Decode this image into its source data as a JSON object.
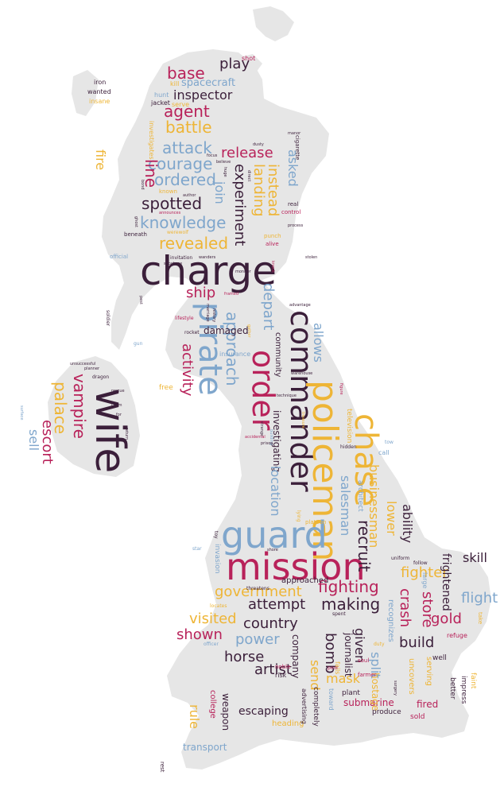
{
  "palette": {
    "land": "#e6e6e6",
    "dark": "#3b1f3a",
    "crimson": "#b8225a",
    "blue": "#7fa6cc",
    "gold": "#eeb536"
  },
  "words": [
    {
      "text": "charge",
      "color": "dark",
      "size": 50
    },
    {
      "text": "wife",
      "color": "dark",
      "size": 52
    },
    {
      "text": "commander",
      "color": "dark",
      "size": 38
    },
    {
      "text": "policeman",
      "color": "gold",
      "size": 44
    },
    {
      "text": "mission",
      "color": "crimson",
      "size": 46
    },
    {
      "text": "guard",
      "color": "blue",
      "size": 46
    },
    {
      "text": "chase",
      "color": "gold",
      "size": 40
    },
    {
      "text": "pirate",
      "color": "blue",
      "size": 40
    },
    {
      "text": "order",
      "color": "crimson",
      "size": 38
    },
    {
      "text": "battle",
      "color": "gold",
      "size": 20
    },
    {
      "text": "agent",
      "color": "crimson",
      "size": 20
    },
    {
      "text": "base",
      "color": "crimson",
      "size": 20
    },
    {
      "text": "play",
      "color": "dark",
      "size": 18
    },
    {
      "text": "inspector",
      "color": "dark",
      "size": 16
    },
    {
      "text": "spacecraft",
      "color": "blue",
      "size": 13
    },
    {
      "text": "attack",
      "color": "blue",
      "size": 20
    },
    {
      "text": "courage",
      "color": "blue",
      "size": 20
    },
    {
      "text": "ordered",
      "color": "blue",
      "size": 20
    },
    {
      "text": "spotted",
      "color": "dark",
      "size": 20
    },
    {
      "text": "knowledge",
      "color": "blue",
      "size": 20
    },
    {
      "text": "revealed",
      "color": "gold",
      "size": 20
    },
    {
      "text": "release",
      "color": "crimson",
      "size": 18
    },
    {
      "text": "experiment",
      "color": "dark",
      "size": 18
    },
    {
      "text": "landing",
      "color": "gold",
      "size": 18
    },
    {
      "text": "instead",
      "color": "gold",
      "size": 18
    },
    {
      "text": "join",
      "color": "blue",
      "size": 16
    },
    {
      "text": "asked",
      "color": "blue",
      "size": 16
    },
    {
      "text": "line",
      "color": "crimson",
      "size": 20
    },
    {
      "text": "fire",
      "color": "gold",
      "size": 16
    },
    {
      "text": "ship",
      "color": "crimson",
      "size": 18
    },
    {
      "text": "approach",
      "color": "blue",
      "size": 20
    },
    {
      "text": "activity",
      "color": "crimson",
      "size": 18
    },
    {
      "text": "depart",
      "color": "blue",
      "size": 18
    },
    {
      "text": "allows",
      "color": "blue",
      "size": 16
    },
    {
      "text": "investigating",
      "color": "dark",
      "size": 12
    },
    {
      "text": "location",
      "color": "blue",
      "size": 16
    },
    {
      "text": "salesman",
      "color": "blue",
      "size": 16
    },
    {
      "text": "businessman",
      "color": "gold",
      "size": 16
    },
    {
      "text": "recruit",
      "color": "dark",
      "size": 20
    },
    {
      "text": "lower",
      "color": "gold",
      "size": 16
    },
    {
      "text": "ability",
      "color": "dark",
      "size": 16
    },
    {
      "text": "fighter",
      "color": "gold",
      "size": 18
    },
    {
      "text": "fighting",
      "color": "crimson",
      "size": 20
    },
    {
      "text": "making",
      "color": "dark",
      "size": 20
    },
    {
      "text": "attempt",
      "color": "dark",
      "size": 18
    },
    {
      "text": "government",
      "color": "gold",
      "size": 18
    },
    {
      "text": "country",
      "color": "dark",
      "size": 18
    },
    {
      "text": "visited",
      "color": "gold",
      "size": 18
    },
    {
      "text": "shown",
      "color": "crimson",
      "size": 18
    },
    {
      "text": "power",
      "color": "blue",
      "size": 18
    },
    {
      "text": "horse",
      "color": "dark",
      "size": 18
    },
    {
      "text": "bomb",
      "color": "dark",
      "size": 18
    },
    {
      "text": "given",
      "color": "dark",
      "size": 16
    },
    {
      "text": "crash",
      "color": "crimson",
      "size": 18
    },
    {
      "text": "store",
      "color": "crimson",
      "size": 18
    },
    {
      "text": "gold",
      "color": "crimson",
      "size": 18
    },
    {
      "text": "flight",
      "color": "blue",
      "size": 18
    },
    {
      "text": "skill",
      "color": "dark",
      "size": 16
    },
    {
      "text": "build",
      "color": "dark",
      "size": 18
    },
    {
      "text": "frightened",
      "color": "dark",
      "size": 14
    },
    {
      "text": "split",
      "color": "blue",
      "size": 16
    },
    {
      "text": "send",
      "color": "gold",
      "size": 16
    },
    {
      "text": "artist",
      "color": "dark",
      "size": 18
    },
    {
      "text": "mask",
      "color": "gold",
      "size": 16
    },
    {
      "text": "escaping",
      "color": "dark",
      "size": 14
    },
    {
      "text": "rule",
      "color": "gold",
      "size": 16
    },
    {
      "text": "transport",
      "color": "blue",
      "size": 12
    },
    {
      "text": "submarine",
      "color": "crimson",
      "size": 12
    },
    {
      "text": "palace",
      "color": "gold",
      "size": 20
    },
    {
      "text": "vampire",
      "color": "crimson",
      "size": 20
    },
    {
      "text": "escort",
      "color": "crimson",
      "size": 18
    },
    {
      "text": "sell",
      "color": "blue",
      "size": 16
    },
    {
      "text": "company",
      "color": "dark",
      "size": 12
    },
    {
      "text": "journalist",
      "color": "dark",
      "size": 12
    },
    {
      "text": "hostage",
      "color": "gold",
      "size": 12
    },
    {
      "text": "recognizes",
      "color": "blue",
      "size": 10
    },
    {
      "text": "uncovers",
      "color": "gold",
      "size": 10
    },
    {
      "text": "serving",
      "color": "gold",
      "size": 10
    },
    {
      "text": "fired",
      "color": "crimson",
      "size": 12
    },
    {
      "text": "damaged",
      "color": "dark",
      "size": 12
    },
    {
      "text": "community",
      "color": "dark",
      "size": 10
    },
    {
      "text": "weapon",
      "color": "dark",
      "size": 12
    },
    {
      "text": "college",
      "color": "crimson",
      "size": 10
    },
    {
      "text": "heading",
      "color": "gold",
      "size": 10
    },
    {
      "text": "completely",
      "color": "dark",
      "size": 9
    },
    {
      "text": "advertising",
      "color": "dark",
      "size": 8
    },
    {
      "text": "plant",
      "color": "dark",
      "size": 9
    },
    {
      "text": "produce",
      "color": "dark",
      "size": 9
    },
    {
      "text": "sold",
      "color": "crimson",
      "size": 9
    },
    {
      "text": "better",
      "color": "dark",
      "size": 9
    },
    {
      "text": "impress",
      "color": "dark",
      "size": 9
    },
    {
      "text": "faint",
      "color": "gold",
      "size": 9
    },
    {
      "text": "well",
      "color": "dark",
      "size": 9
    },
    {
      "text": "refuge",
      "color": "crimson",
      "size": 8
    },
    {
      "text": "approached",
      "color": "dark",
      "size": 10
    },
    {
      "text": "invasion",
      "color": "blue",
      "size": 9
    },
    {
      "text": "television",
      "color": "gold",
      "size": 9
    },
    {
      "text": "architect",
      "color": "blue",
      "size": 9
    },
    {
      "text": "insurance",
      "color": "blue",
      "size": 8
    },
    {
      "text": "free",
      "color": "gold",
      "size": 9
    },
    {
      "text": "hunt",
      "color": "blue",
      "size": 8
    },
    {
      "text": "kill",
      "color": "gold",
      "size": 8
    },
    {
      "text": "jacket",
      "color": "dark",
      "size": 8
    },
    {
      "text": "serve",
      "color": "gold",
      "size": 8
    },
    {
      "text": "investigates",
      "color": "gold",
      "size": 8
    },
    {
      "text": "shot",
      "color": "crimson",
      "size": 8
    },
    {
      "text": "iron",
      "color": "dark",
      "size": 8
    },
    {
      "text": "wanted",
      "color": "dark",
      "size": 8
    },
    {
      "text": "insane",
      "color": "gold",
      "size": 8
    },
    {
      "text": "cigarette",
      "color": "dark",
      "size": 7
    },
    {
      "text": "real",
      "color": "dark",
      "size": 7
    },
    {
      "text": "control",
      "color": "crimson",
      "size": 7
    },
    {
      "text": "punch",
      "color": "gold",
      "size": 7
    },
    {
      "text": "alive",
      "color": "crimson",
      "size": 7
    },
    {
      "text": "beneath",
      "color": "dark",
      "size": 7
    },
    {
      "text": "official",
      "color": "blue",
      "size": 7
    },
    {
      "text": "invitation",
      "color": "dark",
      "size": 6
    },
    {
      "text": "known",
      "color": "gold",
      "size": 7
    },
    {
      "text": "werewolf",
      "color": "gold",
      "size": 6
    },
    {
      "text": "platoon",
      "color": "gold",
      "size": 7
    },
    {
      "text": "call",
      "color": "blue",
      "size": 8
    },
    {
      "text": "tow",
      "color": "blue",
      "size": 6
    },
    {
      "text": "follow",
      "color": "dark",
      "size": 6
    },
    {
      "text": "uniform",
      "color": "dark",
      "size": 6
    },
    {
      "text": "large",
      "color": "blue",
      "size": 8
    },
    {
      "text": "take",
      "color": "gold",
      "size": 7
    },
    {
      "text": "fails",
      "color": "gold",
      "size": 8
    },
    {
      "text": "toward",
      "color": "blue",
      "size": 8
    },
    {
      "text": "farmer",
      "color": "crimson",
      "size": 7
    },
    {
      "text": "duty",
      "color": "gold",
      "size": 6
    },
    {
      "text": "soul",
      "color": "crimson",
      "size": 7
    },
    {
      "text": "risk",
      "color": "dark",
      "size": 8
    },
    {
      "text": "noble",
      "color": "crimson",
      "size": 7
    },
    {
      "text": "poor",
      "color": "crimson",
      "size": 6
    },
    {
      "text": "spent",
      "color": "dark",
      "size": 6
    },
    {
      "text": "officer",
      "color": "blue",
      "size": 6
    },
    {
      "text": "locates",
      "color": "gold",
      "size": 6
    },
    {
      "text": "threatens",
      "color": "dark",
      "size": 6
    },
    {
      "text": "toy",
      "color": "dark",
      "size": 6
    },
    {
      "text": "star",
      "color": "blue",
      "size": 6
    },
    {
      "text": "lifestyle",
      "color": "crimson",
      "size": 6
    },
    {
      "text": "hidden",
      "color": "dark",
      "size": 6
    },
    {
      "text": "dragon",
      "color": "dark",
      "size": 6
    },
    {
      "text": "rocket",
      "color": "dark",
      "size": 6
    },
    {
      "text": "rest",
      "color": "dark",
      "size": 7
    },
    {
      "text": "lying",
      "color": "gold",
      "size": 6
    },
    {
      "text": "sabotage",
      "color": "dark",
      "size": 5
    },
    {
      "text": "monitor",
      "color": "dark",
      "size": 5
    },
    {
      "text": "manor",
      "color": "dark",
      "size": 5
    },
    {
      "text": "gun",
      "color": "blue",
      "size": 6
    },
    {
      "text": "soldier",
      "color": "dark",
      "size": 6
    },
    {
      "text": "technique",
      "color": "dark",
      "size": 5
    },
    {
      "text": "strange",
      "color": "dark",
      "size": 5
    },
    {
      "text": "building",
      "color": "blue",
      "size": 5
    },
    {
      "text": "accidental",
      "color": "crimson",
      "size": 5
    },
    {
      "text": "prison",
      "color": "dark",
      "size": 5
    },
    {
      "text": "treasure",
      "color": "gold",
      "size": 5
    },
    {
      "text": "figure",
      "color": "crimson",
      "size": 5
    },
    {
      "text": "warehouse",
      "color": "dark",
      "size": 5
    },
    {
      "text": "advantage",
      "color": "dark",
      "size": 5
    },
    {
      "text": "framed",
      "color": "crimson",
      "size": 5
    },
    {
      "text": "unsuccessful",
      "color": "dark",
      "size": 5
    },
    {
      "text": "planner",
      "color": "dark",
      "size": 5
    },
    {
      "text": "rescue",
      "color": "dark",
      "size": 5
    },
    {
      "text": "claim",
      "color": "dark",
      "size": 5
    },
    {
      "text": "for",
      "color": "dark",
      "size": 5
    },
    {
      "text": "surface",
      "color": "blue",
      "size": 5
    },
    {
      "text": "return",
      "color": "dark",
      "size": 5
    },
    {
      "text": "direct",
      "color": "dark",
      "size": 5
    },
    {
      "text": "author",
      "color": "dark",
      "size": 5
    },
    {
      "text": "huge",
      "color": "dark",
      "size": 5
    },
    {
      "text": "believe",
      "color": "dark",
      "size": 5
    },
    {
      "text": "focus",
      "color": "dark",
      "size": 5
    },
    {
      "text": "announces",
      "color": "crimson",
      "size": 5
    },
    {
      "text": "ghost",
      "color": "dark",
      "size": 5
    },
    {
      "text": "bond",
      "color": "dark",
      "size": 5
    },
    {
      "text": "wanders",
      "color": "dark",
      "size": 5
    },
    {
      "text": "marriage",
      "color": "dark",
      "size": 5
    },
    {
      "text": "history",
      "color": "dark",
      "size": 5
    },
    {
      "text": "gather",
      "color": "gold",
      "size": 5
    },
    {
      "text": "pest",
      "color": "dark",
      "size": 5
    },
    {
      "text": "dusty",
      "color": "dark",
      "size": 5
    },
    {
      "text": "knock",
      "color": "crimson",
      "size": 5
    },
    {
      "text": "process",
      "color": "dark",
      "size": 5
    },
    {
      "text": "stolen",
      "color": "dark",
      "size": 5
    },
    {
      "text": "shore",
      "color": "dark",
      "size": 5
    },
    {
      "text": "surgery",
      "color": "dark",
      "size": 5
    }
  ]
}
